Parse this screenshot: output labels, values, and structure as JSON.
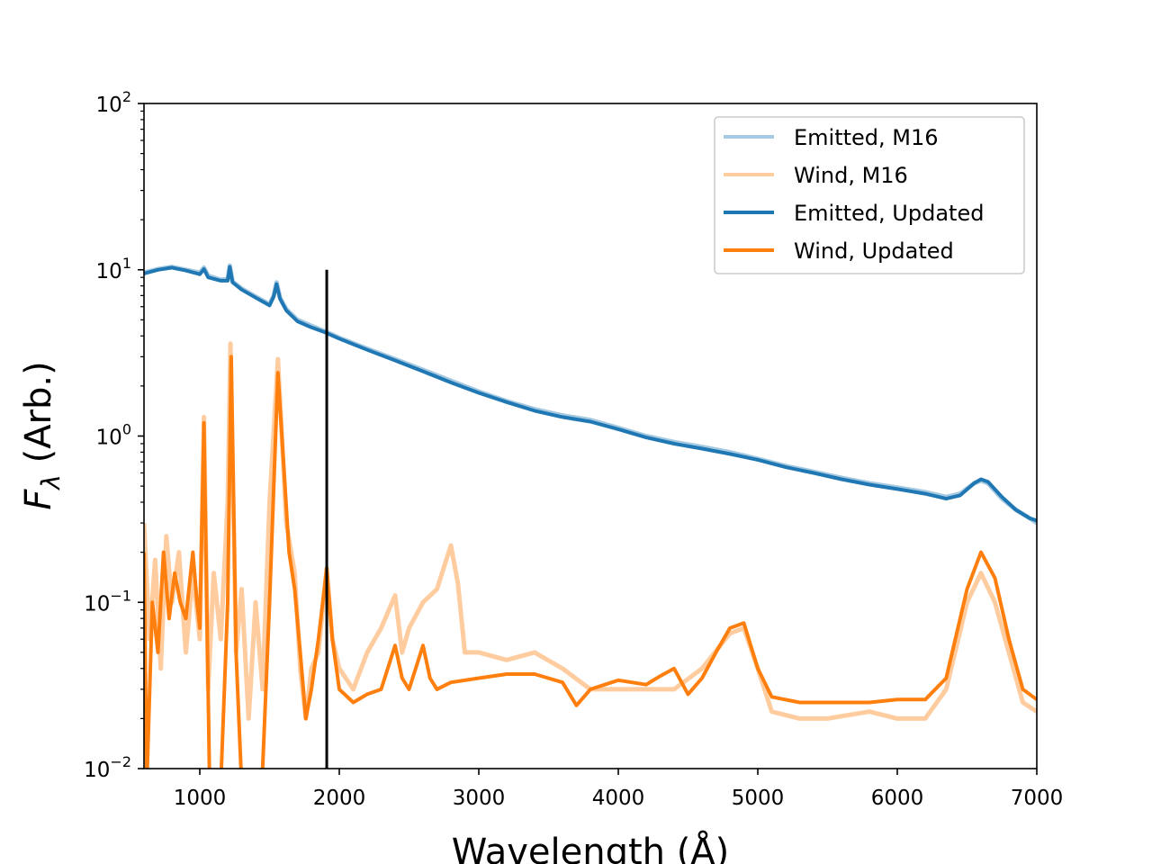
{
  "chart_data": {
    "type": "line",
    "xlabel": "Wavelength (Å)",
    "ylabel": "F_λ (Arb.)",
    "ylabel_main": "F",
    "ylabel_sub": "λ",
    "ylabel_rest": " (Arb.)",
    "xlim": [
      600,
      7000
    ],
    "ylim": [
      0.01,
      100
    ],
    "yscale": "log",
    "grid": false,
    "legend_placement": "top-right",
    "x_ticks": [
      1000,
      2000,
      3000,
      4000,
      5000,
      6000,
      7000
    ],
    "y_ticks": [
      {
        "value": 0.01,
        "base": "10",
        "exp": "−2"
      },
      {
        "value": 0.1,
        "base": "10",
        "exp": "−1"
      },
      {
        "value": 1,
        "base": "10",
        "exp": "0"
      },
      {
        "value": 10,
        "base": "10",
        "exp": "1"
      },
      {
        "value": 100,
        "base": "10",
        "exp": "2"
      }
    ],
    "vertical_line": {
      "x": 1910,
      "y_from": 0.01,
      "y_to": 10
    },
    "series": [
      {
        "name": "Emitted, M16",
        "color": "#1f77b4",
        "opacity": 0.4,
        "points": [
          [
            600,
            9.6
          ],
          [
            700,
            10.1
          ],
          [
            800,
            10.4
          ],
          [
            900,
            10.0
          ],
          [
            1000,
            9.6
          ],
          [
            1030,
            10.3
          ],
          [
            1060,
            9.2
          ],
          [
            1150,
            8.7
          ],
          [
            1200,
            8.8
          ],
          [
            1215,
            10.6
          ],
          [
            1235,
            8.5
          ],
          [
            1300,
            7.7
          ],
          [
            1400,
            6.9
          ],
          [
            1500,
            6.2
          ],
          [
            1530,
            7.0
          ],
          [
            1550,
            8.4
          ],
          [
            1575,
            6.8
          ],
          [
            1620,
            5.8
          ],
          [
            1700,
            5.0
          ],
          [
            1800,
            4.6
          ],
          [
            1900,
            4.25
          ],
          [
            2000,
            3.9
          ],
          [
            2200,
            3.35
          ],
          [
            2400,
            2.9
          ],
          [
            2600,
            2.5
          ],
          [
            2800,
            2.15
          ],
          [
            3000,
            1.85
          ],
          [
            3200,
            1.62
          ],
          [
            3400,
            1.45
          ],
          [
            3600,
            1.33
          ],
          [
            3800,
            1.25
          ],
          [
            4000,
            1.12
          ],
          [
            4200,
            1.0
          ],
          [
            4400,
            0.92
          ],
          [
            4600,
            0.86
          ],
          [
            4800,
            0.8
          ],
          [
            5000,
            0.73
          ],
          [
            5200,
            0.66
          ],
          [
            5400,
            0.61
          ],
          [
            5600,
            0.56
          ],
          [
            5800,
            0.52
          ],
          [
            6000,
            0.49
          ],
          [
            6200,
            0.46
          ],
          [
            6350,
            0.43
          ],
          [
            6450,
            0.45
          ],
          [
            6550,
            0.52
          ],
          [
            6600,
            0.54
          ],
          [
            6650,
            0.52
          ],
          [
            6750,
            0.42
          ],
          [
            6850,
            0.36
          ],
          [
            6950,
            0.32
          ],
          [
            7000,
            0.3
          ]
        ]
      },
      {
        "name": "Wind, M16",
        "color": "#ff7f0e",
        "opacity": 0.4,
        "points": [
          [
            600,
            0.3
          ],
          [
            640,
            0.06
          ],
          [
            680,
            0.18
          ],
          [
            720,
            0.04
          ],
          [
            760,
            0.25
          ],
          [
            800,
            0.1
          ],
          [
            850,
            0.2
          ],
          [
            900,
            0.05
          ],
          [
            950,
            0.15
          ],
          [
            1000,
            0.06
          ],
          [
            1030,
            1.3
          ],
          [
            1060,
            0.03
          ],
          [
            1100,
            0.15
          ],
          [
            1150,
            0.06
          ],
          [
            1200,
            0.4
          ],
          [
            1220,
            3.6
          ],
          [
            1260,
            0.05
          ],
          [
            1300,
            0.12
          ],
          [
            1350,
            0.02
          ],
          [
            1400,
            0.1
          ],
          [
            1450,
            0.03
          ],
          [
            1500,
            0.4
          ],
          [
            1560,
            2.9
          ],
          [
            1620,
            0.3
          ],
          [
            1680,
            0.15
          ],
          [
            1720,
            0.04
          ],
          [
            1760,
            0.02
          ],
          [
            1800,
            0.04
          ],
          [
            1850,
            0.05
          ],
          [
            1910,
            0.16
          ],
          [
            1950,
            0.06
          ],
          [
            2000,
            0.04
          ],
          [
            2100,
            0.03
          ],
          [
            2200,
            0.05
          ],
          [
            2300,
            0.07
          ],
          [
            2400,
            0.11
          ],
          [
            2450,
            0.05
          ],
          [
            2500,
            0.07
          ],
          [
            2600,
            0.1
          ],
          [
            2700,
            0.12
          ],
          [
            2800,
            0.22
          ],
          [
            2850,
            0.13
          ],
          [
            2900,
            0.05
          ],
          [
            3000,
            0.05
          ],
          [
            3200,
            0.045
          ],
          [
            3400,
            0.05
          ],
          [
            3600,
            0.04
          ],
          [
            3800,
            0.03
          ],
          [
            4000,
            0.03
          ],
          [
            4200,
            0.03
          ],
          [
            4400,
            0.03
          ],
          [
            4600,
            0.04
          ],
          [
            4800,
            0.065
          ],
          [
            4900,
            0.07
          ],
          [
            5000,
            0.04
          ],
          [
            5100,
            0.022
          ],
          [
            5300,
            0.02
          ],
          [
            5500,
            0.02
          ],
          [
            5800,
            0.022
          ],
          [
            6000,
            0.02
          ],
          [
            6200,
            0.02
          ],
          [
            6350,
            0.03
          ],
          [
            6500,
            0.1
          ],
          [
            6600,
            0.15
          ],
          [
            6700,
            0.1
          ],
          [
            6800,
            0.05
          ],
          [
            6900,
            0.025
          ],
          [
            7000,
            0.022
          ]
        ]
      },
      {
        "name": "Emitted, Updated",
        "color": "#1f77b4",
        "opacity": 1.0,
        "points": [
          [
            600,
            9.5
          ],
          [
            700,
            10.0
          ],
          [
            800,
            10.3
          ],
          [
            900,
            9.9
          ],
          [
            1000,
            9.4
          ],
          [
            1030,
            10.1
          ],
          [
            1060,
            9.0
          ],
          [
            1150,
            8.6
          ],
          [
            1200,
            8.6
          ],
          [
            1215,
            10.4
          ],
          [
            1235,
            8.4
          ],
          [
            1300,
            7.6
          ],
          [
            1400,
            6.8
          ],
          [
            1500,
            6.1
          ],
          [
            1530,
            6.9
          ],
          [
            1550,
            8.2
          ],
          [
            1575,
            6.7
          ],
          [
            1620,
            5.7
          ],
          [
            1700,
            4.9
          ],
          [
            1800,
            4.5
          ],
          [
            1900,
            4.2
          ],
          [
            2000,
            3.85
          ],
          [
            2200,
            3.3
          ],
          [
            2400,
            2.85
          ],
          [
            2600,
            2.45
          ],
          [
            2800,
            2.1
          ],
          [
            3000,
            1.82
          ],
          [
            3200,
            1.6
          ],
          [
            3400,
            1.42
          ],
          [
            3600,
            1.3
          ],
          [
            3800,
            1.22
          ],
          [
            4000,
            1.1
          ],
          [
            4200,
            0.98
          ],
          [
            4400,
            0.9
          ],
          [
            4600,
            0.84
          ],
          [
            4800,
            0.78
          ],
          [
            5000,
            0.72
          ],
          [
            5200,
            0.65
          ],
          [
            5400,
            0.6
          ],
          [
            5600,
            0.55
          ],
          [
            5800,
            0.51
          ],
          [
            6000,
            0.48
          ],
          [
            6200,
            0.45
          ],
          [
            6350,
            0.42
          ],
          [
            6450,
            0.44
          ],
          [
            6550,
            0.52
          ],
          [
            6600,
            0.55
          ],
          [
            6650,
            0.53
          ],
          [
            6750,
            0.43
          ],
          [
            6850,
            0.36
          ],
          [
            6950,
            0.32
          ],
          [
            7000,
            0.31
          ]
        ]
      },
      {
        "name": "Wind, Updated",
        "color": "#ff7f0e",
        "opacity": 1.0,
        "points": [
          [
            600,
            0.2
          ],
          [
            620,
            0.008
          ],
          [
            660,
            0.1
          ],
          [
            700,
            0.05
          ],
          [
            740,
            0.2
          ],
          [
            780,
            0.08
          ],
          [
            820,
            0.15
          ],
          [
            860,
            0.1
          ],
          [
            900,
            0.08
          ],
          [
            950,
            0.2
          ],
          [
            980,
            0.1
          ],
          [
            1000,
            0.07
          ],
          [
            1030,
            1.2
          ],
          [
            1070,
            0.008
          ],
          [
            1100,
            0.007
          ],
          [
            1150,
            0.008
          ],
          [
            1200,
            0.1
          ],
          [
            1225,
            3.0
          ],
          [
            1260,
            0.05
          ],
          [
            1300,
            0.008
          ],
          [
            1350,
            0.008
          ],
          [
            1400,
            0.008
          ],
          [
            1450,
            0.01
          ],
          [
            1500,
            0.1
          ],
          [
            1560,
            2.4
          ],
          [
            1600,
            0.7
          ],
          [
            1640,
            0.2
          ],
          [
            1680,
            0.12
          ],
          [
            1720,
            0.05
          ],
          [
            1760,
            0.02
          ],
          [
            1800,
            0.03
          ],
          [
            1850,
            0.06
          ],
          [
            1910,
            0.16
          ],
          [
            1950,
            0.06
          ],
          [
            2000,
            0.03
          ],
          [
            2100,
            0.025
          ],
          [
            2200,
            0.028
          ],
          [
            2300,
            0.03
          ],
          [
            2400,
            0.055
          ],
          [
            2450,
            0.035
          ],
          [
            2500,
            0.03
          ],
          [
            2600,
            0.055
          ],
          [
            2650,
            0.035
          ],
          [
            2700,
            0.03
          ],
          [
            2800,
            0.033
          ],
          [
            3000,
            0.035
          ],
          [
            3200,
            0.037
          ],
          [
            3400,
            0.037
          ],
          [
            3600,
            0.033
          ],
          [
            3700,
            0.024
          ],
          [
            3800,
            0.03
          ],
          [
            4000,
            0.034
          ],
          [
            4200,
            0.032
          ],
          [
            4300,
            0.036
          ],
          [
            4400,
            0.04
          ],
          [
            4500,
            0.028
          ],
          [
            4600,
            0.035
          ],
          [
            4700,
            0.05
          ],
          [
            4800,
            0.07
          ],
          [
            4900,
            0.075
          ],
          [
            5000,
            0.04
          ],
          [
            5100,
            0.027
          ],
          [
            5300,
            0.025
          ],
          [
            5500,
            0.025
          ],
          [
            5800,
            0.025
          ],
          [
            6000,
            0.026
          ],
          [
            6200,
            0.026
          ],
          [
            6350,
            0.035
          ],
          [
            6500,
            0.12
          ],
          [
            6600,
            0.2
          ],
          [
            6700,
            0.14
          ],
          [
            6800,
            0.06
          ],
          [
            6900,
            0.03
          ],
          [
            7000,
            0.026
          ]
        ]
      }
    ]
  }
}
